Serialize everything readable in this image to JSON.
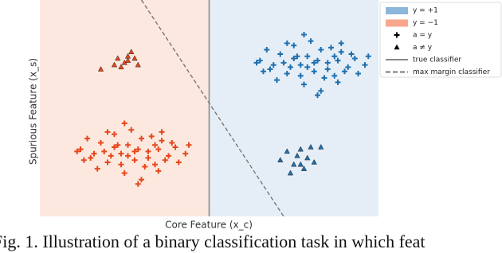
{
  "chart_data": {
    "type": "scatter",
    "x_label": "Core Feature (x_c)",
    "y_label": "Spurious Feature (x_s)",
    "caption": "Fig. 1. Illustration of a binary classification task in which feat",
    "xlim": [
      0,
      10
    ],
    "ylim": [
      0,
      10
    ],
    "true_classifier_x": 5,
    "max_margin_line": {
      "x": [
        3,
        7.2
      ],
      "y": [
        10,
        0
      ]
    },
    "region_colors": [
      "#fce8de",
      "#e5eef7"
    ],
    "series": [
      {
        "color": "#e8461c",
        "marker": "plus",
        "x": [
          1.2,
          1.5,
          1.8,
          2.0,
          2.2,
          2.4,
          2.6,
          2.8,
          3.0,
          3.2,
          3.4,
          3.6,
          3.8,
          4.0,
          4.3,
          1.4,
          1.7,
          1.9,
          2.1,
          2.3,
          2.5,
          2.7,
          2.9,
          3.1,
          3.3,
          3.5,
          3.7,
          3.9,
          1.6,
          2.0,
          2.4,
          2.8,
          3.2,
          3.6,
          4.1,
          1.3,
          2.2,
          2.6,
          3.0,
          3.4,
          1.1,
          4.4,
          2.5,
          2.9,
          3.5
        ],
        "values": [
          3.1,
          2.7,
          3.4,
          2.5,
          3.8,
          2.9,
          3.3,
          2.6,
          3.6,
          3.0,
          2.4,
          3.5,
          2.8,
          3.2,
          2.9,
          3.6,
          2.2,
          3.0,
          2.8,
          3.3,
          2.0,
          4.0,
          3.1,
          2.3,
          3.7,
          3.1,
          2.6,
          3.4,
          2.9,
          3.9,
          2.4,
          3.0,
          2.7,
          3.9,
          2.5,
          2.6,
          3.2,
          2.8,
          1.7,
          3.3,
          3.0,
          3.3,
          4.3,
          1.5,
          2.1
        ]
      },
      {
        "color": "#e8461c",
        "marker": "triangle",
        "x": [
          1.8,
          2.2,
          2.3,
          2.5,
          2.6,
          2.7,
          2.8,
          2.9,
          2.4,
          2.6
        ],
        "values": [
          6.8,
          7.0,
          7.3,
          7.1,
          7.4,
          7.6,
          7.3,
          7.0,
          6.9,
          7.2
        ]
      },
      {
        "color": "#1f6fae",
        "marker": "plus",
        "x": [
          6.5,
          6.8,
          7.1,
          7.3,
          7.5,
          7.7,
          7.9,
          8.1,
          8.3,
          8.5,
          8.7,
          8.9,
          9.1,
          9.3,
          9.6,
          6.7,
          7.0,
          7.2,
          7.4,
          7.6,
          7.8,
          8.0,
          8.2,
          8.4,
          8.6,
          8.8,
          9.0,
          9.2,
          6.9,
          7.3,
          7.7,
          8.1,
          8.5,
          8.9,
          9.4,
          6.6,
          7.5,
          7.9,
          8.3,
          8.7,
          6.4,
          9.7,
          7.8,
          8.2,
          8.8
        ],
        "values": [
          7.2,
          6.8,
          7.5,
          6.6,
          7.9,
          7.0,
          7.4,
          6.7,
          7.7,
          7.1,
          6.5,
          7.6,
          6.9,
          7.3,
          7.0,
          7.7,
          6.3,
          7.1,
          6.9,
          7.4,
          6.1,
          8.1,
          7.2,
          6.4,
          7.8,
          7.2,
          6.7,
          7.5,
          7.0,
          8.0,
          6.5,
          7.1,
          6.8,
          8.0,
          6.6,
          6.7,
          7.3,
          6.9,
          5.8,
          7.4,
          7.1,
          7.4,
          8.4,
          5.6,
          6.2
        ]
      },
      {
        "color": "#1f6fae",
        "marker": "triangle",
        "x": [
          7.1,
          7.3,
          7.5,
          7.6,
          7.7,
          7.8,
          7.9,
          8.0,
          8.1,
          8.3,
          7.4,
          7.7
        ],
        "values": [
          2.6,
          3.0,
          2.4,
          2.8,
          3.1,
          2.2,
          2.7,
          3.2,
          2.5,
          3.2,
          2.0,
          2.4
        ]
      }
    ],
    "legend": [
      {
        "label": "y = +1",
        "kind": "patch",
        "color": "#8cb6dc"
      },
      {
        "label": "y = −1",
        "kind": "patch",
        "color": "#f8a68c"
      },
      {
        "label": "a = y",
        "kind": "plus",
        "color": "#000000"
      },
      {
        "label": "a ≠ y",
        "kind": "triangle",
        "color": "#000000"
      },
      {
        "label": "true classifier",
        "kind": "solid",
        "color": "#888888"
      },
      {
        "label": "max margin classifier",
        "kind": "dashed",
        "color": "#777777"
      }
    ]
  }
}
